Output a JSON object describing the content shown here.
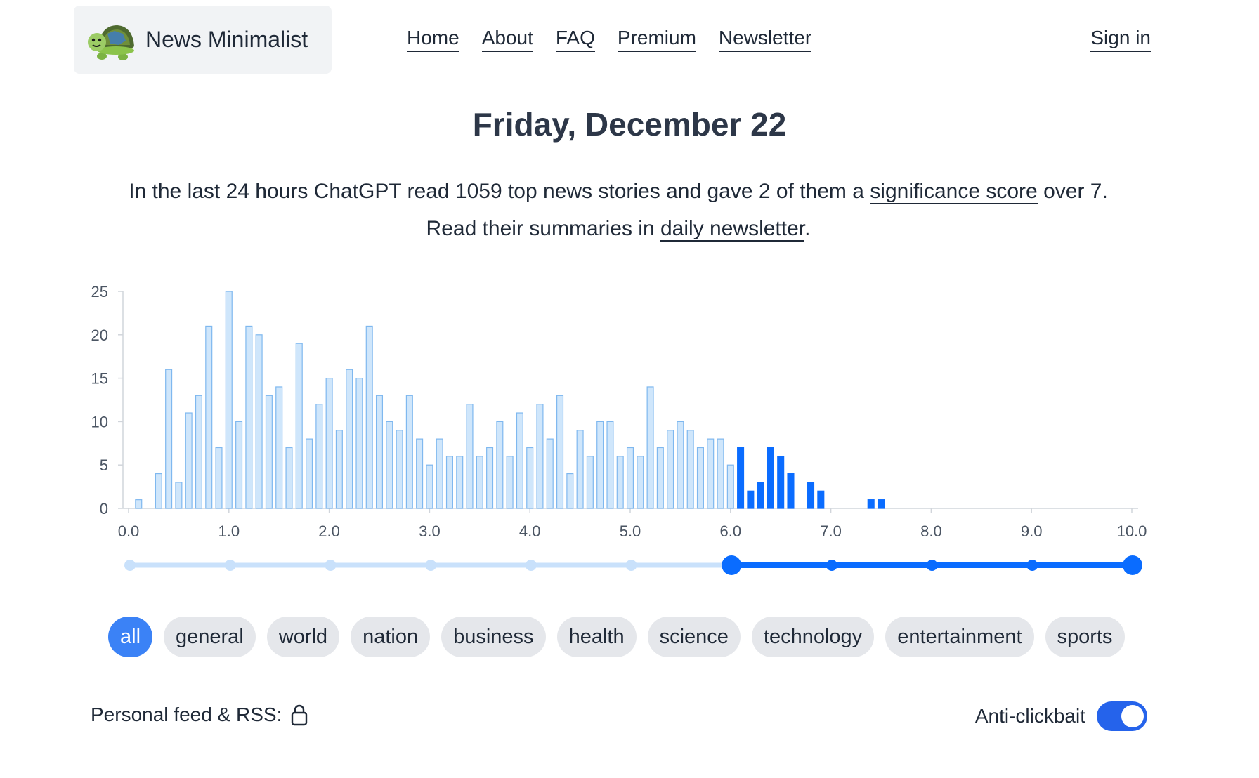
{
  "header": {
    "brand_name": "News Minimalist",
    "nav": [
      "Home",
      "About",
      "FAQ",
      "Premium",
      "Newsletter"
    ],
    "signin": "Sign in"
  },
  "date_title": "Friday, December 22",
  "summary": {
    "line1_pre": "In the last 24 hours ChatGPT read 1059 top news stories and gave 2 of them a ",
    "line1_link": "significance score",
    "line1_post": " over 7.",
    "line2_pre": "Read their summaries in ",
    "line2_link": "daily newsletter",
    "line2_post": "."
  },
  "chart_data": {
    "type": "bar",
    "x_start": 0.1,
    "x_step": 0.1,
    "values": [
      1,
      0,
      4,
      16,
      3,
      11,
      13,
      21,
      7,
      25,
      10,
      21,
      20,
      13,
      14,
      7,
      19,
      8,
      12,
      15,
      9,
      16,
      15,
      21,
      13,
      10,
      9,
      13,
      8,
      5,
      8,
      6,
      6,
      12,
      6,
      7,
      10,
      6,
      11,
      7,
      12,
      8,
      13,
      4,
      9,
      6,
      10,
      10,
      6,
      7,
      6,
      14,
      7,
      9,
      10,
      9,
      7,
      8,
      8,
      5,
      7,
      2,
      3,
      7,
      6,
      4,
      0,
      3,
      2,
      0,
      0,
      0,
      0,
      1,
      1
    ],
    "highlight_from": 6.0,
    "xlim": [
      0,
      10
    ],
    "ylim": [
      0,
      25
    ],
    "y_ticks": [
      "0",
      "5",
      "10",
      "15",
      "20",
      "25"
    ],
    "x_ticks": [
      "0.0",
      "1.0",
      "2.0",
      "3.0",
      "4.0",
      "5.0",
      "6.0",
      "7.0",
      "8.0",
      "9.0",
      "10.0"
    ],
    "colors": {
      "light_fill": "#cfe6fb",
      "light_stroke": "#7fb8ef",
      "dark_fill": "#0a6cff",
      "axis": "#d1d5db",
      "tick_text": "#4b5563"
    }
  },
  "slider": {
    "min": 0,
    "max": 10,
    "range_low": 6,
    "range_high": 10,
    "colors": {
      "light": "#c9e1fb",
      "dark": "#0a6cff"
    }
  },
  "categories": {
    "items": [
      "all",
      "general",
      "world",
      "nation",
      "business",
      "health",
      "science",
      "technology",
      "entertainment",
      "sports"
    ],
    "selected": "all"
  },
  "footer": {
    "feed_label": "Personal feed & RSS:",
    "lock_icon": "lock-icon",
    "anticlickbait_label": "Anti-clickbait",
    "anticlickbait_on": true
  }
}
